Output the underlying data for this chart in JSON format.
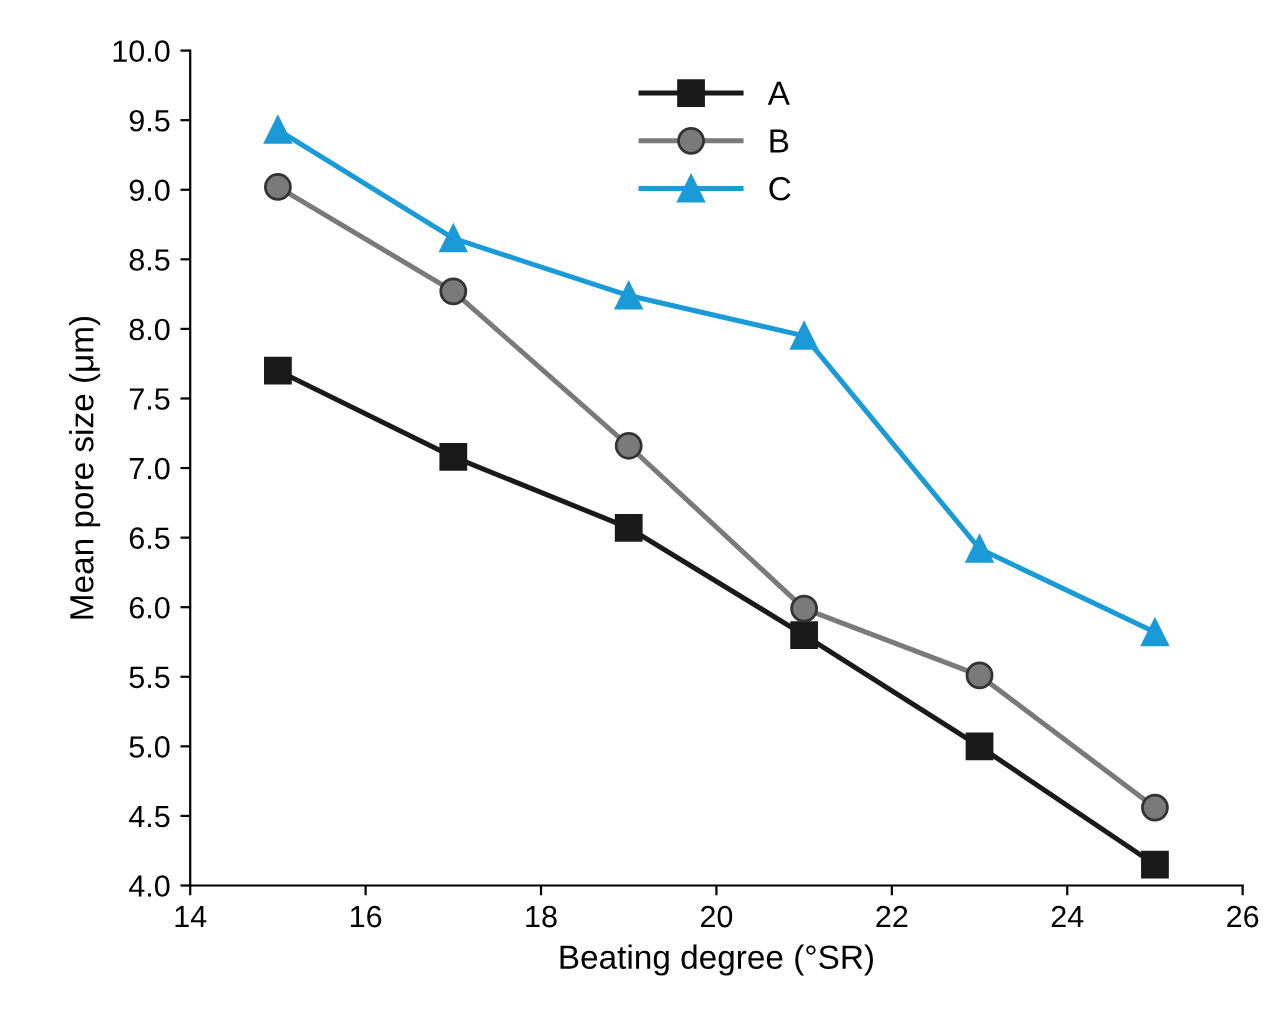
{
  "chart_data": {
    "type": "line",
    "xlabel": "Beating degree (°SR)",
    "ylabel": "Mean pore size (μm)",
    "x": [
      15,
      17,
      19,
      21,
      23,
      25
    ],
    "series": [
      {
        "name": "A",
        "color": "#1a1a1a",
        "marker": "square",
        "values": [
          7.7,
          7.08,
          6.57,
          5.8,
          5.0,
          4.15
        ]
      },
      {
        "name": "B",
        "color": "#7a7a7a",
        "marker": "circle",
        "values": [
          9.02,
          8.27,
          7.16,
          5.99,
          5.51,
          4.56
        ]
      },
      {
        "name": "C",
        "color": "#1a9ad6",
        "marker": "triangle",
        "values": [
          9.43,
          8.65,
          8.24,
          7.95,
          6.42,
          5.82
        ]
      }
    ],
    "xlim": [
      14,
      26
    ],
    "xticks": [
      14,
      16,
      18,
      20,
      22,
      24,
      26
    ],
    "ylim": [
      4.0,
      10.0
    ],
    "yticks": [
      {
        "value": 4.0,
        "label": "4.0"
      },
      {
        "value": 4.5,
        "label": "4.5"
      },
      {
        "value": 5.0,
        "label": "5.0"
      },
      {
        "value": 5.5,
        "label": "5.5"
      },
      {
        "value": 6.0,
        "label": "6.0"
      },
      {
        "value": 6.5,
        "label": "6.5"
      },
      {
        "value": 7.0,
        "label": "7.0"
      },
      {
        "value": 7.5,
        "label": "7.5"
      },
      {
        "value": 8.0,
        "label": "8.0"
      },
      {
        "value": 8.5,
        "label": "8.5"
      },
      {
        "value": 9.0,
        "label": "9.0"
      },
      {
        "value": 9.5,
        "label": "9.5"
      },
      {
        "value": 10.0,
        "label": "10.0"
      }
    ],
    "grid": false,
    "legend": "top",
    "line_style": "solid"
  }
}
